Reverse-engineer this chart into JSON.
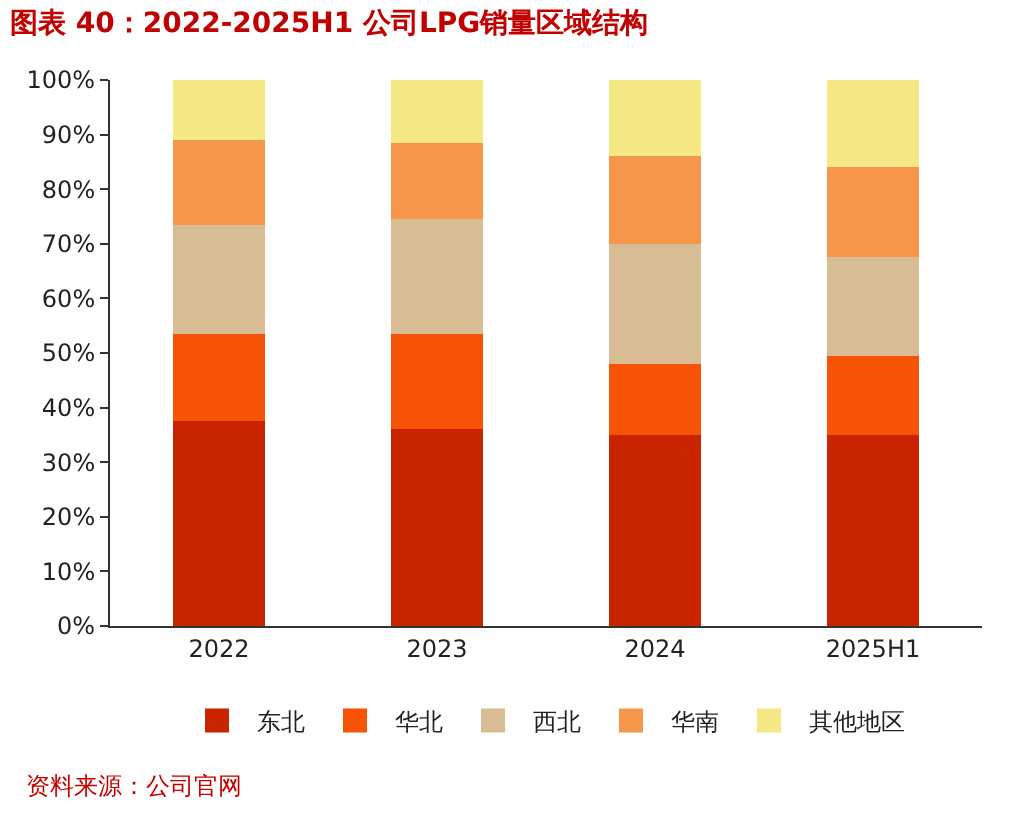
{
  "chart_data": {
    "type": "bar",
    "title": "图表 40：2022-2025H1 公司LPG销量区域结构",
    "stacked": true,
    "categories": [
      "2022",
      "2023",
      "2024",
      "2025H1"
    ],
    "series": [
      {
        "name": "东北",
        "color": "#c82400",
        "values": [
          37.5,
          36,
          35,
          35
        ]
      },
      {
        "name": "华北",
        "color": "#f75307",
        "values": [
          16,
          17.5,
          13,
          14.5
        ]
      },
      {
        "name": "西北",
        "color": "#d8bc94",
        "values": [
          20,
          21,
          22,
          18
        ]
      },
      {
        "name": "华南",
        "color": "#f6964a",
        "values": [
          15.5,
          14,
          16,
          16.5
        ]
      },
      {
        "name": "其他地区",
        "color": "#f5e783",
        "values": [
          11,
          11.5,
          14,
          16
        ]
      }
    ],
    "ylim": [
      0,
      100
    ],
    "yticks": [
      {
        "value": 0,
        "label": "0%"
      },
      {
        "value": 10,
        "label": "10%"
      },
      {
        "value": 20,
        "label": "20%"
      },
      {
        "value": 30,
        "label": "30%"
      },
      {
        "value": 40,
        "label": "40%"
      },
      {
        "value": 50,
        "label": "50%"
      },
      {
        "value": 60,
        "label": "60%"
      },
      {
        "value": 70,
        "label": "70%"
      },
      {
        "value": 80,
        "label": "80%"
      },
      {
        "value": 90,
        "label": "90%"
      },
      {
        "value": 100,
        "label": "100%"
      }
    ],
    "grid": false,
    "legend": "bottom",
    "annotations": [
      "资料来源：公司官网"
    ]
  }
}
